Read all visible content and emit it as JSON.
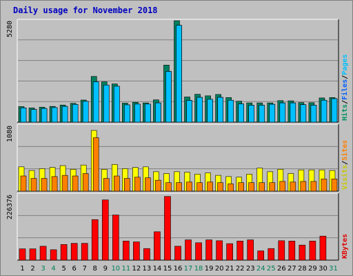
{
  "chart_data": {
    "type": "bar",
    "title": "Daily usage for November 2018",
    "categories": [
      "1",
      "2",
      "3",
      "4",
      "5",
      "6",
      "7",
      "8",
      "9",
      "10",
      "11",
      "12",
      "13",
      "14",
      "15",
      "16",
      "17",
      "18",
      "19",
      "20",
      "21",
      "22",
      "23",
      "24",
      "25",
      "26",
      "27",
      "28",
      "29",
      "30",
      "31"
    ],
    "weekend_days": [
      "3",
      "4",
      "10",
      "11",
      "17",
      "18",
      "24",
      "25",
      "31"
    ],
    "panels": [
      {
        "max_label": "5280",
        "ylim": [
          0,
          5280
        ],
        "right_labels": [
          {
            "text": "Hits",
            "color": "#009060"
          },
          {
            "text": "/",
            "color": "#000000"
          },
          {
            "text": "Files",
            "color": "#0060ff"
          },
          {
            "text": "/",
            "color": "#000000"
          },
          {
            "text": "Pages",
            "color": "#00c0ff"
          }
        ],
        "series": [
          {
            "name": "Hits",
            "color": "#008060",
            "values": [
              810,
              740,
              780,
              820,
              890,
              980,
              1150,
              2380,
              2100,
              1990,
              990,
              1030,
              1000,
              1160,
              2970,
              5280,
              1310,
              1450,
              1370,
              1440,
              1280,
              1090,
              1000,
              1000,
              1000,
              1120,
              1110,
              1020,
              1010,
              1260,
              1280
            ]
          },
          {
            "name": "Files",
            "color": "#00c8ff",
            "values": [
              740,
              660,
              710,
              760,
              820,
              920,
              1080,
              2100,
              1930,
              1870,
              900,
              940,
              940,
              1000,
              2640,
              5040,
              1130,
              1290,
              1190,
              1290,
              1140,
              950,
              880,
              880,
              930,
              1000,
              1000,
              910,
              880,
              1140,
              1220
            ]
          },
          {
            "name": "Pages",
            "color": "#00c0ff",
            "values": [
              740,
              660,
              710,
              760,
              820,
              920,
              1080,
              2100,
              1930,
              1870,
              900,
              940,
              940,
              1000,
              2640,
              5040,
              1130,
              1290,
              1190,
              1290,
              1140,
              950,
              880,
              880,
              930,
              1000,
              1000,
              910,
              880,
              1140,
              1220
            ]
          }
        ]
      },
      {
        "max_label": "1080",
        "ylim": [
          0,
          1080
        ],
        "right_labels": [
          {
            "text": "Visits",
            "color": "#c8c800"
          },
          {
            "text": "/",
            "color": "#000000"
          },
          {
            "text": "Sites",
            "color": "#ff8000"
          }
        ],
        "series": [
          {
            "name": "Visits",
            "color": "#ffff00",
            "values": [
              400,
              340,
              370,
              390,
              420,
              360,
              430,
              1000,
              360,
              440,
              370,
              390,
              400,
              320,
              290,
              320,
              310,
              280,
              300,
              260,
              240,
              230,
              280,
              380,
              320,
              360,
              290,
              350,
              350,
              350,
              340
            ]
          },
          {
            "name": "Sites",
            "color": "#ff8000",
            "values": [
              250,
              210,
              210,
              240,
              260,
              250,
              290,
              880,
              210,
              250,
              210,
              230,
              220,
              180,
              140,
              140,
              150,
              140,
              150,
              140,
              120,
              140,
              140,
              140,
              140,
              160,
              150,
              160,
              160,
              200,
              200
            ]
          }
        ]
      },
      {
        "max_label": "226376",
        "ylim": [
          0,
          226376
        ],
        "right_labels": [
          {
            "text": "KBytes",
            "color": "#e00000"
          }
        ],
        "series": [
          {
            "name": "KBytes",
            "color": "#ff0000",
            "values": [
              39000,
              39000,
              48000,
              36000,
              54000,
              58000,
              58000,
              140000,
              208000,
              156000,
              66000,
              63000,
              40000,
              98000,
              220000,
              48000,
              70000,
              60000,
              70000,
              67000,
              57000,
              66000,
              70000,
              32000,
              40000,
              67000,
              66000,
              52000,
              66000,
              83000,
              0
            ]
          }
        ]
      }
    ]
  }
}
